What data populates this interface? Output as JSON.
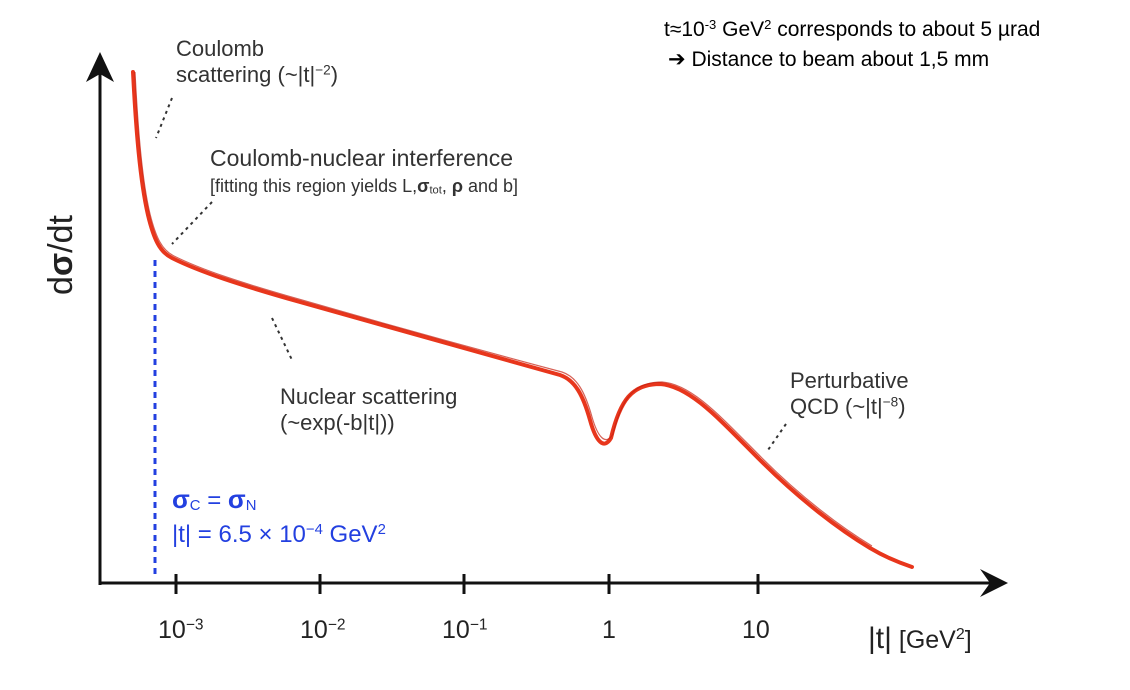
{
  "slide": {
    "title_fragment": "",
    "note_line1_pre": "t≈10",
    "note_line1_exp": "-3",
    "note_line1_mid": " GeV",
    "note_line1_exp2": "2",
    "note_line1_post": " corresponds to about 5 µrad",
    "note_line2_arrow": "➔",
    "note_line2": " Distance to beam about 1,5 mm"
  },
  "axes": {
    "ylabel_prefix": "d",
    "ylabel_sigma": "σ",
    "ylabel_suffix": "/dt",
    "xlabel_t": "|t|",
    "xlabel_unit_pre": " [GeV",
    "xlabel_unit_exp": "2",
    "xlabel_unit_post": "]",
    "ticks": [
      {
        "base": "10",
        "exp": "−3"
      },
      {
        "base": "10",
        "exp": "−2"
      },
      {
        "base": "10",
        "exp": "−1"
      },
      {
        "base": "1",
        "exp": ""
      },
      {
        "base": "10",
        "exp": ""
      }
    ]
  },
  "annotations": {
    "coulomb_line1": "Coulomb",
    "coulomb_line2_pre": "scattering (~|t|",
    "coulomb_line2_exp": "−2",
    "coulomb_line2_post": ")",
    "cni_line1": "Coulomb-nuclear interference",
    "cni_line2_pre": "[fitting this region yields L,",
    "cni_line2_sigma": "σ",
    "cni_line2_sub": "tot",
    "cni_line2_mid": ",  ",
    "cni_line2_rho": "ρ",
    "cni_line2_post": " and b]",
    "nuclear_line1": "Nuclear scattering",
    "nuclear_line2": "(~exp(-b|t|))",
    "pqcd_line1": "Perturbative",
    "pqcd_line2_pre": "QCD (~|t|",
    "pqcd_line2_exp": "−8",
    "pqcd_line2_post": ")",
    "cross_sigma1": "σ",
    "cross_sub1": "C",
    "cross_eq": " = ",
    "cross_sigma2": "σ",
    "cross_sub2": "N",
    "cross_t_pre": "|t| = 6.5 × 10",
    "cross_t_exp": "−4",
    "cross_t_post": " GeV",
    "cross_t_exp2": "2"
  },
  "colors": {
    "curve": "#e8361c",
    "marker_line": "#2340e0",
    "axis": "#111111"
  }
}
